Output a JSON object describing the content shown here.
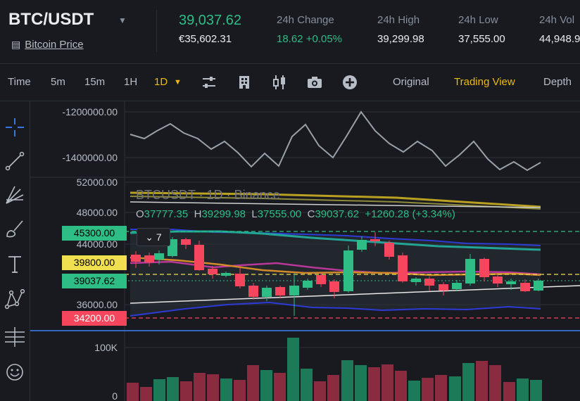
{
  "header": {
    "pair": "BTC/USDT",
    "subtitle": "Bitcoin Price",
    "last_price": "39,037.62",
    "last_price_eur": "€35,602.31",
    "stats": [
      {
        "label": "24h Change",
        "value": "18.62 +0.05%",
        "color": "#2ebd85"
      },
      {
        "label": "24h High",
        "value": "39,299.98",
        "color": "#eaecef"
      },
      {
        "label": "24h Low",
        "value": "37,555.00",
        "color": "#eaecef"
      },
      {
        "label": "24h Vol",
        "value": "44,948.9",
        "color": "#eaecef"
      }
    ]
  },
  "toolbar": {
    "intervals": [
      "Time",
      "5m",
      "15m",
      "1H",
      "1D"
    ],
    "active_interval": "1D",
    "views": [
      "Original",
      "Trading View",
      "Depth"
    ],
    "active_view": "Trading View",
    "icons": [
      "indicator-settings-icon",
      "building-icon",
      "candlestick-icon",
      "camera-icon",
      "add-circle-icon"
    ]
  },
  "left_tools": [
    "crosshair-icon",
    "trend-line-icon",
    "fib-tool-icon",
    "brush-icon",
    "text-icon",
    "pattern-icon",
    "measure-icon",
    "emoji-icon"
  ],
  "chart": {
    "symbol_legend": "BTCUSDT · 1D · Binance",
    "ohlc": {
      "o_label": "O",
      "o": "37777.35",
      "h_label": "H",
      "h": "39299.98",
      "l_label": "L",
      "l": "37555.00",
      "c_label": "C",
      "c": "39037.62",
      "change": "+1260.28 (+3.34%)"
    },
    "collapse_count": "7",
    "badges": [
      {
        "text": "45300.00",
        "bg": "#2ebd85",
        "color": "#000000"
      },
      {
        "text": "39800.00",
        "bg": "#f0e050",
        "color": "#000000"
      },
      {
        "text": "39037.62",
        "bg": "#2ebd85",
        "color": "#000000"
      },
      {
        "text": "34200.00",
        "bg": "#f6465d",
        "color": "#ffffff"
      }
    ],
    "indicator_axis": [
      "-1200000.00",
      "-1400000.00"
    ],
    "price_axis": [
      "52000.00",
      "48000.00",
      "44000.00",
      "36000.00"
    ],
    "volume_axis": [
      "100K",
      "0"
    ],
    "colors": {
      "up": "#2ebd85",
      "down": "#f6465d"
    }
  }
}
